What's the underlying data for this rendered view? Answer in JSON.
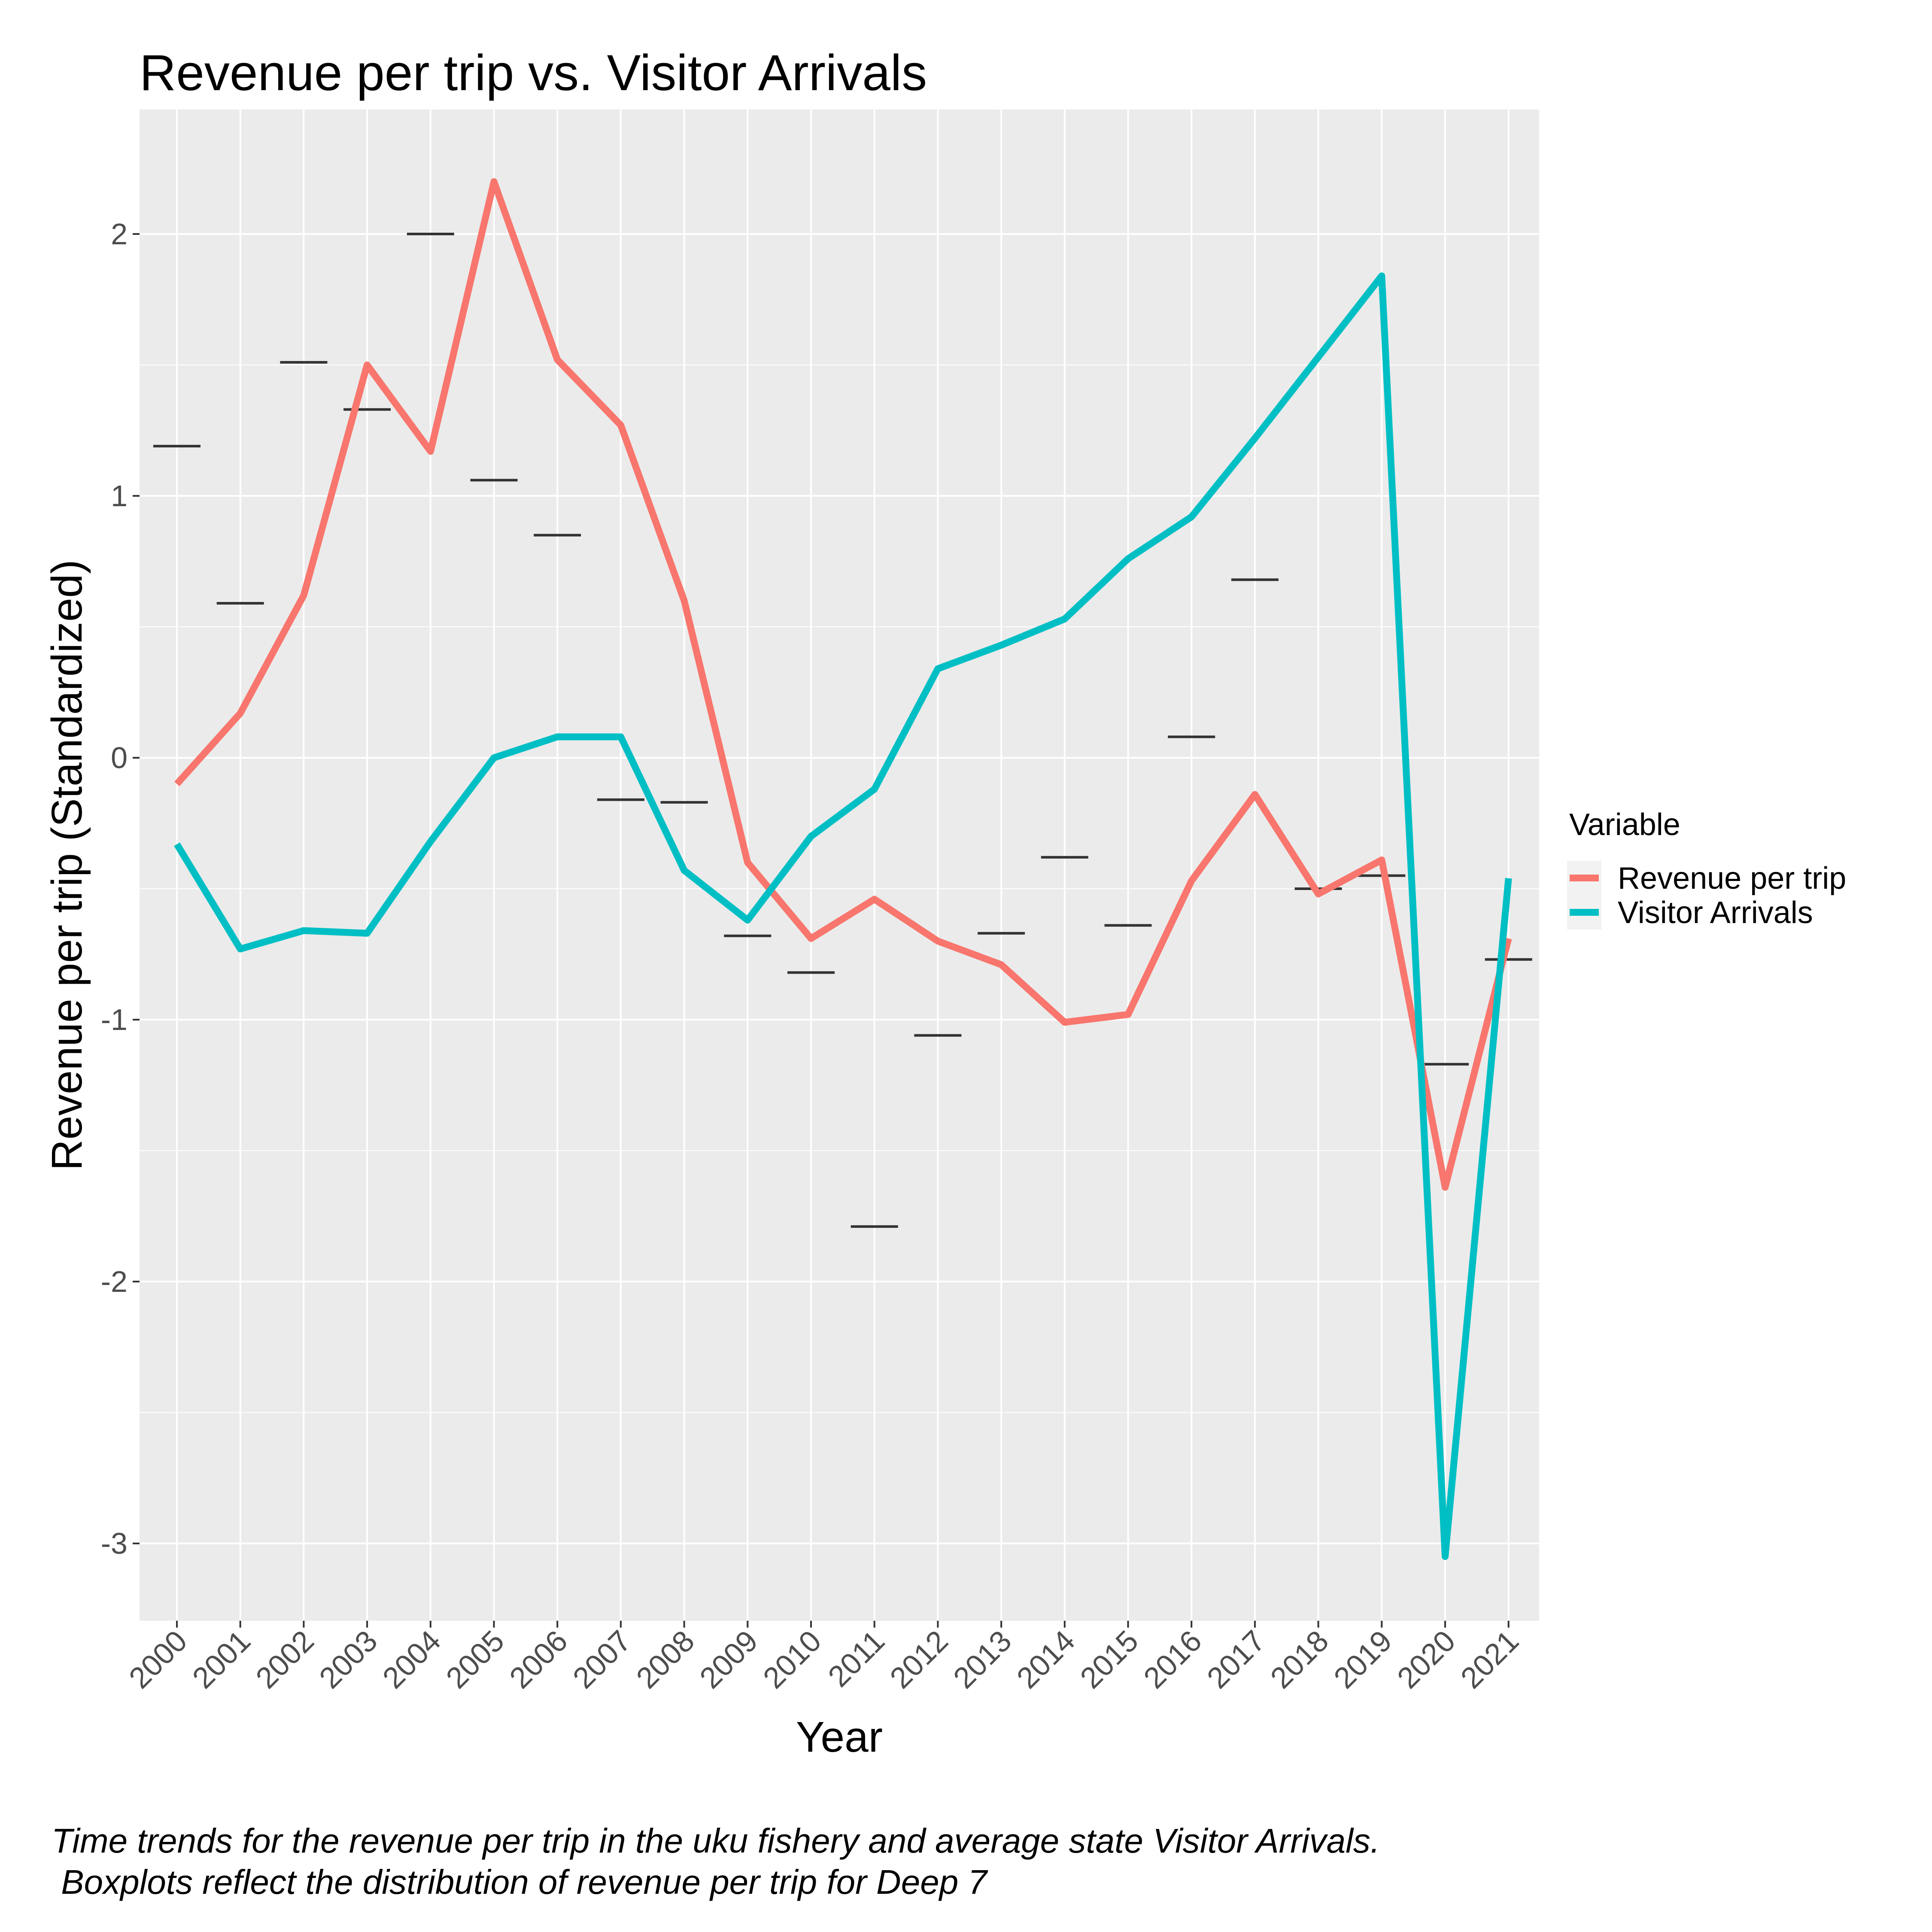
{
  "chart_data": {
    "type": "line",
    "title": "Revenue per trip vs. Visitor Arrivals",
    "xlabel": "Year",
    "ylabel": "Revenue per trip (Standardized)",
    "categories": [
      "2000",
      "2001",
      "2002",
      "2003",
      "2004",
      "2005",
      "2006",
      "2007",
      "2008",
      "2009",
      "2010",
      "2011",
      "2012",
      "2013",
      "2014",
      "2015",
      "2016",
      "2017",
      "2018",
      "2019",
      "2020",
      "2021"
    ],
    "y_ticks": [
      2,
      1,
      0,
      -1,
      -2,
      -3
    ],
    "y_tick_labels": [
      "2",
      "1",
      "0",
      "-1",
      "-2",
      "-3"
    ],
    "ylim": [
      -3.3,
      2.45
    ],
    "grid": true,
    "legend": {
      "title": "Variable",
      "position": "right"
    },
    "series": [
      {
        "name": "Revenue per trip",
        "color": "#F8766D",
        "values": [
          -0.1,
          0.17,
          0.62,
          1.5,
          1.17,
          2.2,
          1.52,
          1.27,
          0.6,
          -0.4,
          -0.69,
          -0.54,
          -0.7,
          -0.79,
          -1.01,
          -0.98,
          -0.47,
          -0.14,
          -0.52,
          -0.39,
          -1.64,
          -0.69
        ]
      },
      {
        "name": "Visitor Arrivals",
        "color": "#00BFC4",
        "values": [
          -0.33,
          -0.73,
          -0.66,
          -0.67,
          -0.32,
          0.0,
          0.08,
          0.08,
          -0.43,
          -0.62,
          -0.3,
          -0.12,
          0.34,
          0.43,
          0.53,
          0.76,
          0.92,
          1.22,
          1.53,
          1.84,
          -3.05,
          -0.46
        ]
      }
    ],
    "deep7_median": {
      "color": "#333333",
      "values": [
        1.19,
        0.59,
        1.51,
        1.33,
        2.0,
        1.06,
        0.85,
        -0.16,
        -0.17,
        -0.68,
        -0.82,
        -1.79,
        -1.06,
        -0.67,
        -0.38,
        -0.64,
        0.08,
        0.68,
        -0.5,
        -0.45,
        -1.17,
        -0.77
      ]
    }
  },
  "caption": "Time trends for the revenue per trip in the uku fishery and average state Visitor Arrivals.\n Boxplots reflect the distribution of revenue per trip for Deep 7"
}
